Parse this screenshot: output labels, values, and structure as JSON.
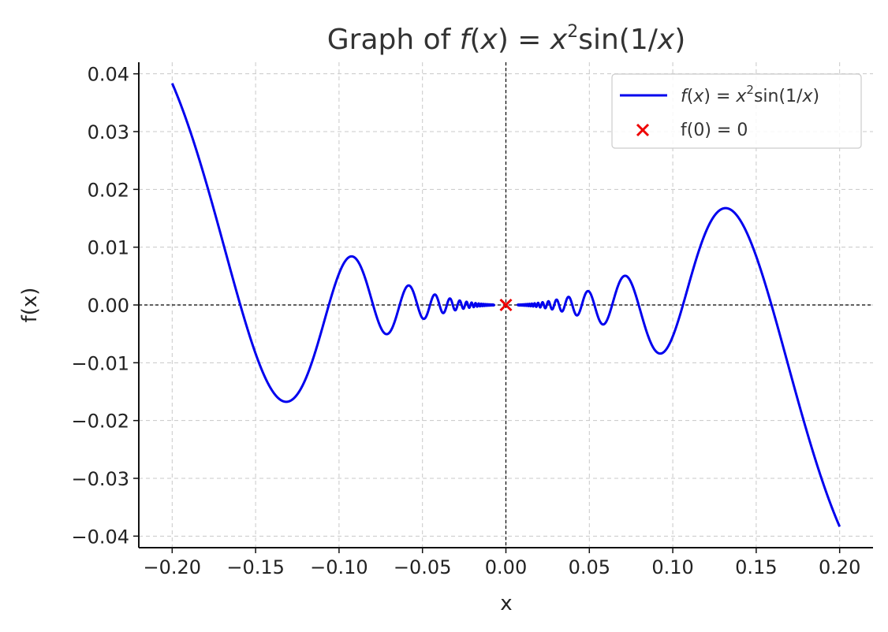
{
  "chart_data": {
    "type": "line",
    "title": {
      "prefix": "Graph of ",
      "formula": {
        "f": "f",
        "lp": "(",
        "x1": "x",
        "rp": ")",
        "eq": " = ",
        "x2": "x",
        "sup": "2",
        "sin": "sin(1/",
        "x3": "x",
        "end": ")"
      }
    },
    "xlabel": "x",
    "ylabel": "f(x)",
    "xlim": [
      -0.22,
      0.22
    ],
    "ylim": [
      -0.042,
      0.042
    ],
    "xticks": [
      -0.2,
      -0.15,
      -0.1,
      -0.05,
      0.0,
      0.05,
      0.1,
      0.15,
      0.2
    ],
    "xtick_labels": [
      "−0.20",
      "−0.15",
      "−0.10",
      "−0.05",
      "0.00",
      "0.05",
      "0.10",
      "0.15",
      "0.20"
    ],
    "yticks": [
      -0.04,
      -0.03,
      -0.02,
      -0.01,
      0.0,
      0.01,
      0.02,
      0.03,
      0.04
    ],
    "ytick_labels": [
      "−0.04",
      "−0.03",
      "−0.02",
      "−0.01",
      "0.00",
      "0.01",
      "0.02",
      "0.03",
      "0.04"
    ],
    "grid": true,
    "legend_position": "top-right",
    "series": [
      {
        "type": "line",
        "function": "x^2 * sin(1/x)",
        "x_range": [
          -0.2,
          0.2
        ],
        "excluded_interval": [
          -0.007,
          0.007
        ],
        "color": "#0000ee",
        "legend": {
          "f": "f",
          "lp": "(",
          "x1": "x",
          "rp": ")",
          "eq": " = ",
          "x2": "x",
          "sup": "2",
          "sin": "sin(1/",
          "x3": "x",
          "end": ")"
        }
      },
      {
        "type": "scatter",
        "name": "f(0) = 0",
        "points": [
          [
            0,
            0
          ]
        ],
        "marker": "x",
        "color": "#ee0000"
      }
    ]
  }
}
